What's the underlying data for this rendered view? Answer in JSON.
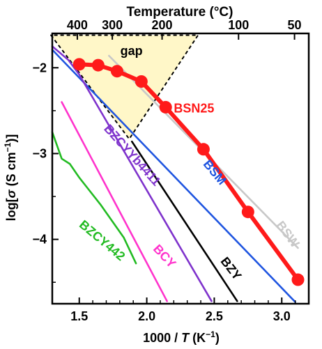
{
  "chart_data": {
    "type": "line",
    "xlabel_prefix": "1000 / ",
    "xlabel_var": "T",
    "xlabel_suffix": " (K",
    "xlabel_sup": "−1",
    "xlabel_end": ")",
    "ylabel_prefix": "log[",
    "ylabel_var": "σ",
    "ylabel_mid": " (S cm",
    "ylabel_sup": "−1",
    "ylabel_end": ")]",
    "top_axis_label": "Temperature (°C)",
    "xlim": [
      1.3,
      3.2
    ],
    "ylim": [
      -4.75,
      -1.6
    ],
    "x_ticks": [
      1.5,
      2.0,
      2.5,
      3.0
    ],
    "x_tick_labels": [
      "1.5",
      "2.0",
      "2.5",
      "3.0"
    ],
    "y_ticks": [
      -2,
      -3,
      -4
    ],
    "y_tick_labels": [
      "−2",
      "−3",
      "−4"
    ],
    "top_ticks_celsius": [
      400,
      300,
      200,
      100,
      50
    ],
    "top_tick_labels": [
      "400",
      "300",
      "200",
      "100",
      "50"
    ],
    "gap_label": "gap",
    "gap_region": {
      "x": [
        1.29,
        1.87,
        2.38
      ],
      "y": [
        -1.62,
        -2.83,
        -1.62
      ]
    },
    "colors": {
      "BSN25": "#ff1a1a",
      "BSW": "#c8c8c8",
      "BSM": "#1f55e0",
      "BZY": "#000000",
      "BZCYYb4411": "#7f33cc",
      "BCY": "#ff33cc",
      "BZCY442": "#22bb22",
      "gap_fill": "#fff7c8"
    },
    "series": [
      {
        "name": "BSN25",
        "x": [
          1.5,
          1.64,
          1.78,
          1.96,
          2.14,
          2.42,
          2.75,
          3.12
        ],
        "y": [
          -1.96,
          -1.97,
          -2.04,
          -2.16,
          -2.46,
          -2.95,
          -3.68,
          -4.47
        ]
      },
      {
        "name": "BSW",
        "x": [
          1.72,
          3.12
        ],
        "y": [
          -1.86,
          -4.1
        ]
      },
      {
        "name": "BSM",
        "x": [
          1.3,
          3.1
        ],
        "y": [
          -1.79,
          -4.73
        ]
      },
      {
        "name": "BZY",
        "x": [
          1.89,
          2.67
        ],
        "y": [
          -2.86,
          -4.72
        ]
      },
      {
        "name": "BZCYYb4411",
        "x": [
          1.3,
          1.42,
          1.5,
          2.48
        ],
        "y": [
          -1.75,
          -1.91,
          -2.08,
          -4.72
        ]
      },
      {
        "name": "BCY",
        "x": [
          1.37,
          2.15
        ],
        "y": [
          -2.4,
          -4.72
        ]
      },
      {
        "name": "BZCY442",
        "x": [
          1.3,
          1.37,
          1.43,
          1.5,
          1.55,
          1.66,
          1.83,
          1.92
        ],
        "y": [
          -2.75,
          -3.06,
          -3.12,
          -3.28,
          -3.38,
          -3.6,
          -3.98,
          -4.28
        ]
      }
    ],
    "series_labels": [
      {
        "name": "BSN25",
        "text": "BSN25",
        "x": 2.35,
        "y": -2.52,
        "rotate": 0
      },
      {
        "name": "BSW",
        "text": "BSW",
        "x": 3.02,
        "y": -3.97,
        "rotate": 53
      },
      {
        "name": "BSM",
        "text": "BSM",
        "x": 2.48,
        "y": -3.25,
        "rotate": 50
      },
      {
        "name": "BZY",
        "text": "BZY",
        "x": 2.6,
        "y": -4.37,
        "rotate": 52
      },
      {
        "name": "BZCYYb4411",
        "text": "BZCYYb4411",
        "x": 1.87,
        "y": -3.05,
        "rotate": 48
      },
      {
        "name": "BCY",
        "text": "BCY",
        "x": 2.11,
        "y": -4.23,
        "rotate": 47
      },
      {
        "name": "BZCY442",
        "text": "BZCY442",
        "x": 1.65,
        "y": -4.05,
        "rotate": 40
      }
    ]
  }
}
